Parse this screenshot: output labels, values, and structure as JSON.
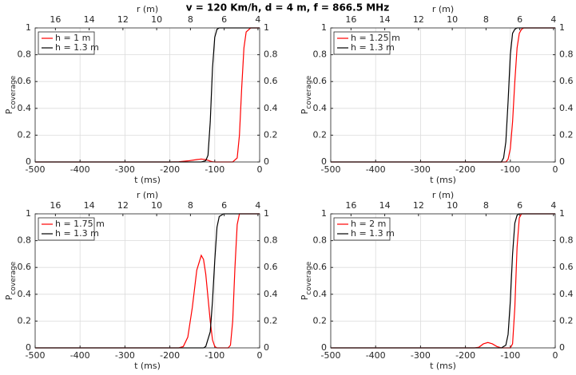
{
  "title": "v = 120 Km/h, d = 4 m, f = 866.5 MHz",
  "chart_data": [
    {
      "type": "line",
      "xlabel": "t (ms)",
      "ylabel": "P",
      "ylabel_sub": "coverage",
      "x2label": "r (m)",
      "xlim": [
        -500,
        0
      ],
      "xticks": [
        -500,
        -400,
        -300,
        -200,
        -100,
        0
      ],
      "x2lim": [
        17.2,
        3.9
      ],
      "x2ticks": [
        16,
        14,
        12,
        10,
        8,
        6,
        4
      ],
      "ylim": [
        0,
        1
      ],
      "yticks": [
        0,
        0.2,
        0.4,
        0.6,
        0.8,
        1
      ],
      "grid": true,
      "legend": "upper-left",
      "x": [
        -500,
        -200,
        -180,
        -160,
        -140,
        -130,
        -120,
        -115,
        -110,
        -105,
        -100,
        -95,
        -90,
        -80,
        -60,
        -50,
        -45,
        -40,
        -35,
        -30,
        -20,
        0
      ],
      "series": [
        {
          "name": "h = 1 m",
          "color": "#ff0000",
          "values": [
            0,
            0,
            0.002,
            0.008,
            0.018,
            0.022,
            0.018,
            0.012,
            0.006,
            0.002,
            0,
            0,
            0,
            0,
            0,
            0.03,
            0.2,
            0.55,
            0.85,
            0.97,
            1,
            1
          ]
        },
        {
          "name": "h = 1.3 m",
          "color": "#000000",
          "values": [
            0,
            0,
            0,
            0,
            0,
            0,
            0.01,
            0.05,
            0.3,
            0.7,
            0.93,
            0.99,
            1,
            1,
            1,
            1,
            1,
            1,
            1,
            1,
            1,
            1
          ]
        }
      ]
    },
    {
      "type": "line",
      "xlabel": "t (ms)",
      "ylabel": "P",
      "ylabel_sub": "coverage",
      "x2label": "r (m)",
      "xlim": [
        -500,
        0
      ],
      "xticks": [
        -500,
        -400,
        -300,
        -200,
        -100,
        0
      ],
      "x2lim": [
        17.2,
        3.9
      ],
      "x2ticks": [
        16,
        14,
        12,
        10,
        8,
        6,
        4
      ],
      "ylim": [
        0,
        1
      ],
      "yticks": [
        0,
        0.2,
        0.4,
        0.6,
        0.8,
        1
      ],
      "grid": true,
      "legend": "upper-left",
      "x": [
        -500,
        -120,
        -115,
        -110,
        -105,
        -100,
        -95,
        -90,
        -85,
        -80,
        -75,
        -70,
        0
      ],
      "series": [
        {
          "name": "h = 1.25 m",
          "color": "#ff0000",
          "values": [
            0,
            0,
            0,
            0,
            0.02,
            0.1,
            0.3,
            0.6,
            0.85,
            0.96,
            0.99,
            1,
            1
          ]
        },
        {
          "name": "h = 1.3 m",
          "color": "#000000",
          "values": [
            0,
            0,
            0.03,
            0.15,
            0.45,
            0.8,
            0.96,
            0.99,
            1,
            1,
            1,
            1,
            1
          ]
        }
      ]
    },
    {
      "type": "line",
      "xlabel": "t (ms)",
      "ylabel": "P",
      "ylabel_sub": "coverage",
      "x2label": "r (m)",
      "xlim": [
        -500,
        0
      ],
      "xticks": [
        -500,
        -400,
        -300,
        -200,
        -100,
        0
      ],
      "x2lim": [
        17.2,
        3.9
      ],
      "x2ticks": [
        16,
        14,
        12,
        10,
        8,
        6,
        4
      ],
      "ylim": [
        0,
        1
      ],
      "yticks": [
        0,
        0.2,
        0.4,
        0.6,
        0.8,
        1
      ],
      "grid": true,
      "legend": "upper-left",
      "x": [
        -500,
        -180,
        -170,
        -160,
        -150,
        -140,
        -130,
        -125,
        -120,
        -110,
        -105,
        -100,
        -95,
        -90,
        -80,
        -70,
        -65,
        -60,
        -55,
        -50,
        -45,
        0
      ],
      "series": [
        {
          "name": "h = 1.75 m",
          "color": "#ff0000",
          "values": [
            0,
            0,
            0.01,
            0.08,
            0.3,
            0.58,
            0.69,
            0.66,
            0.55,
            0.2,
            0.06,
            0.01,
            0,
            0,
            0,
            0,
            0.02,
            0.2,
            0.6,
            0.92,
            1,
            1
          ]
        },
        {
          "name": "h = 1.3 m",
          "color": "#000000",
          "values": [
            0,
            0,
            0,
            0,
            0,
            0,
            0,
            0,
            0.01,
            0.12,
            0.35,
            0.65,
            0.9,
            0.98,
            1,
            1,
            1,
            1,
            1,
            1,
            1,
            1
          ]
        }
      ]
    },
    {
      "type": "line",
      "xlabel": "t (ms)",
      "ylabel": "P",
      "ylabel_sub": "coverage",
      "x2label": "r (m)",
      "xlim": [
        -500,
        0
      ],
      "xticks": [
        -500,
        -400,
        -300,
        -200,
        -100,
        0
      ],
      "x2lim": [
        17.2,
        3.9
      ],
      "x2ticks": [
        16,
        14,
        12,
        10,
        8,
        6,
        4
      ],
      "ylim": [
        0,
        1
      ],
      "yticks": [
        0,
        0.2,
        0.4,
        0.6,
        0.8,
        1
      ],
      "grid": true,
      "legend": "upper-left",
      "x": [
        -500,
        -180,
        -170,
        -160,
        -150,
        -140,
        -130,
        -120,
        -110,
        -105,
        -100,
        -95,
        -90,
        -85,
        -80,
        -75,
        0
      ],
      "series": [
        {
          "name": "h = 2 m",
          "color": "#ff0000",
          "values": [
            0,
            0,
            0.005,
            0.03,
            0.04,
            0.03,
            0.01,
            0,
            0,
            0,
            0,
            0.03,
            0.3,
            0.75,
            0.97,
            1,
            1
          ]
        },
        {
          "name": "h = 1.3 m",
          "color": "#000000",
          "values": [
            0,
            0,
            0,
            0,
            0,
            0,
            0,
            0,
            0.02,
            0.1,
            0.35,
            0.7,
            0.93,
            0.99,
            1,
            1,
            1
          ]
        }
      ]
    }
  ]
}
